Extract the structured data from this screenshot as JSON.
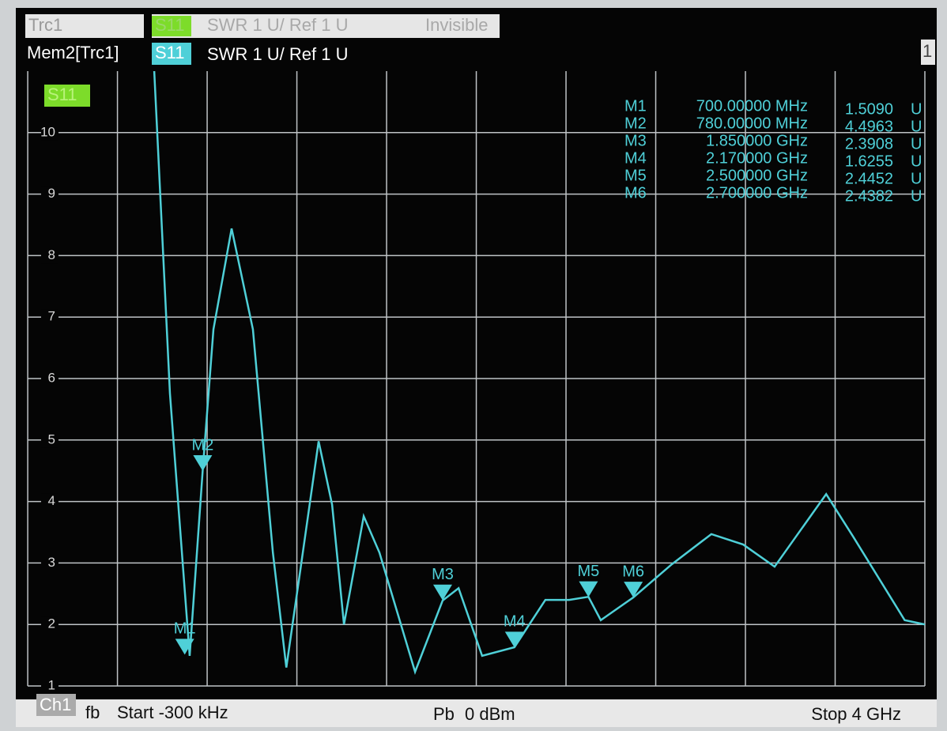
{
  "header": {
    "rows": [
      {
        "trace": "Trc1",
        "param": "S11",
        "format": "SWR 1 U/ Ref 1 U",
        "state": "Invisible"
      },
      {
        "trace": "Mem2[Trc1]",
        "param": "S11",
        "format": "SWR 1 U/ Ref 1 U"
      }
    ],
    "window": "1"
  },
  "footer": {
    "channel": "Ch1",
    "sweep": "fb",
    "start": "Start -300 kHz",
    "power_label": "Pb",
    "power": "0 dBm",
    "stop": "Stop 4 GHz"
  },
  "chart_data": {
    "type": "line",
    "trace_label": "S11",
    "xlim": [
      -0.0003,
      4
    ],
    "xticks": [
      0,
      0.4,
      0.8,
      1.2,
      1.6,
      2.0,
      2.4,
      2.8,
      3.2,
      3.6,
      4.0
    ],
    "ylim": [
      1,
      11
    ],
    "yticks": [
      1,
      2,
      3,
      4,
      5,
      6,
      7,
      8,
      9,
      10
    ],
    "grid": true,
    "series": [
      {
        "name": "S11",
        "color": "#4fd0d8",
        "x": [
          0.564,
          0.634,
          0.722,
          0.78,
          0.828,
          0.909,
          1.004,
          1.093,
          1.153,
          1.216,
          1.297,
          1.357,
          1.41,
          1.498,
          1.568,
          1.727,
          1.85,
          1.921,
          2.026,
          2.17,
          2.308,
          2.414,
          2.5,
          2.555,
          2.7,
          2.872,
          3.048,
          3.19,
          3.33,
          3.56,
          3.68,
          3.91,
          4.0
        ],
        "values": [
          11,
          5.76,
          1.49,
          4.5,
          6.8,
          8.44,
          6.8,
          3.17,
          1.3,
          2.9,
          4.98,
          3.95,
          2.0,
          3.76,
          3.17,
          1.23,
          2.39,
          2.59,
          1.49,
          1.63,
          2.4,
          2.4,
          2.45,
          2.07,
          2.44,
          2.98,
          3.47,
          3.3,
          2.94,
          4.12,
          3.43,
          2.07,
          2.0
        ]
      }
    ],
    "markers": [
      {
        "name": "M1",
        "frequency": "700.00000 MHz",
        "x": 0.7,
        "value": 1.509,
        "value_label": "1.5090",
        "unit": "U"
      },
      {
        "name": "M2",
        "frequency": "780.00000 MHz",
        "x": 0.78,
        "value": 4.4963,
        "value_label": "4.4963",
        "unit": "U"
      },
      {
        "name": "M3",
        "frequency": "1.850000 GHz",
        "x": 1.85,
        "value": 2.3908,
        "value_label": "2.3908",
        "unit": "U"
      },
      {
        "name": "M4",
        "frequency": "2.170000 GHz",
        "x": 2.17,
        "value": 1.6255,
        "value_label": "1.6255",
        "unit": "U"
      },
      {
        "name": "M5",
        "frequency": "2.500000 GHz",
        "x": 2.5,
        "value": 2.4452,
        "value_label": "2.4452",
        "unit": "U"
      },
      {
        "name": "M6",
        "frequency": "2.700000 GHz",
        "x": 2.7,
        "value": 2.4382,
        "value_label": "2.4382",
        "unit": "U"
      }
    ]
  }
}
